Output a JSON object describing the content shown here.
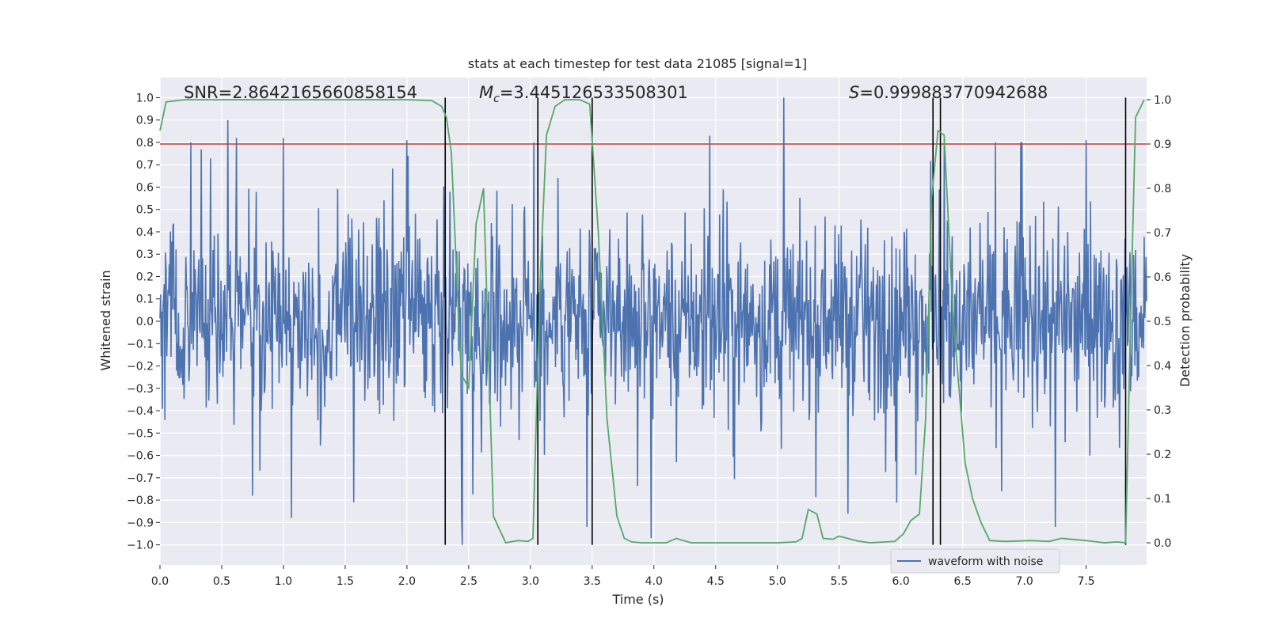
{
  "chart_data": {
    "type": "line",
    "title": "stats at each timestep for test data 21085 [signal=1]",
    "xlabel": "Time (s)",
    "ylabel_left": "Whitened strain",
    "ylabel_right": "Detection probability",
    "xlim": [
      0.0,
      7.99
    ],
    "ylim_left": [
      -1.09,
      1.09
    ],
    "ylim_right": [
      -0.05,
      1.05
    ],
    "x_ticks": [
      "0.0",
      "0.5",
      "1.0",
      "1.5",
      "2.0",
      "2.5",
      "3.0",
      "3.5",
      "4.0",
      "4.5",
      "5.0",
      "5.5",
      "6.0",
      "6.5",
      "7.0",
      "7.5"
    ],
    "y_ticks_left": [
      "1.0",
      "0.9",
      "0.8",
      "0.7",
      "0.6",
      "0.5",
      "0.4",
      "0.3",
      "0.2",
      "0.1",
      "0.0",
      "−0.1",
      "−0.2",
      "−0.3",
      "−0.4",
      "−0.5",
      "−0.6",
      "−0.7",
      "−0.8",
      "−0.9",
      "−1.0"
    ],
    "y_ticks_right": [
      "1.0",
      "0.9",
      "0.8",
      "0.7",
      "0.6",
      "0.5",
      "0.4",
      "0.3",
      "0.2",
      "0.1",
      "0.0"
    ],
    "grid": true,
    "legend": {
      "position": "bottom-right",
      "entries": [
        "waveform with noise"
      ]
    },
    "annotations": {
      "snr": "SNR=2.8642165660858154",
      "mc_symbol": "M",
      "mc_sub": "c",
      "mc_value": "=3.445126533508301",
      "s_symbol": "S",
      "s_value": "=0.999883770942688"
    },
    "threshold_line": {
      "y_right": 0.9,
      "color": "#c03d3e"
    },
    "vertical_lines_x": [
      2.31,
      3.06,
      3.5,
      6.26,
      6.32,
      7.82
    ],
    "waveform": {
      "name": "waveform with noise",
      "color": "#4c72b0",
      "n_samples": 1600,
      "base_amplitude": 0.19,
      "spikes": [
        {
          "x": 0.55,
          "y": 0.9
        },
        {
          "x": 0.62,
          "y": 0.82
        },
        {
          "x": 1.0,
          "y": 0.82
        },
        {
          "x": 2.0,
          "y": 0.81
        },
        {
          "x": 5.05,
          "y": 1.0
        },
        {
          "x": 4.45,
          "y": 0.83
        },
        {
          "x": 6.35,
          "y": 0.81
        },
        {
          "x": 7.5,
          "y": 0.81
        },
        {
          "x": 3.46,
          "y": -0.92
        },
        {
          "x": 2.45,
          "y": -1.0
        },
        {
          "x": 3.98,
          "y": -0.97
        },
        {
          "x": 7.25,
          "y": -0.92
        },
        {
          "x": 0.75,
          "y": -0.78
        },
        {
          "x": 5.57,
          "y": -0.86
        }
      ]
    },
    "detection_probability": {
      "name": "detection probability",
      "color": "#55a868",
      "x": [
        0.0,
        0.05,
        0.2,
        0.5,
        1.0,
        1.5,
        2.0,
        2.2,
        2.28,
        2.32,
        2.36,
        2.4,
        2.44,
        2.5,
        2.56,
        2.62,
        2.7,
        2.8,
        2.9,
        2.98,
        3.02,
        3.08,
        3.13,
        3.2,
        3.28,
        3.4,
        3.48,
        3.55,
        3.62,
        3.7,
        3.76,
        3.82,
        3.9,
        4.1,
        4.18,
        4.3,
        4.6,
        5.0,
        5.15,
        5.2,
        5.25,
        5.32,
        5.37,
        5.45,
        5.5,
        5.65,
        5.75,
        5.95,
        6.02,
        6.08,
        6.15,
        6.2,
        6.25,
        6.3,
        6.35,
        6.42,
        6.52,
        6.58,
        6.65,
        6.72,
        6.85,
        7.05,
        7.2,
        7.3,
        7.5,
        7.65,
        7.75,
        7.82,
        7.86,
        7.9,
        7.97
      ],
      "y": [
        0.93,
        0.995,
        1.0,
        1.0,
        1.0,
        1.0,
        1.0,
        0.998,
        0.985,
        0.96,
        0.88,
        0.62,
        0.38,
        0.35,
        0.72,
        0.8,
        0.06,
        0.0,
        0.005,
        0.003,
        0.01,
        0.6,
        0.92,
        0.985,
        1.0,
        1.0,
        0.99,
        0.7,
        0.28,
        0.06,
        0.01,
        0.002,
        0.0,
        0.0,
        0.01,
        0.0,
        0.0,
        0.0,
        0.002,
        0.01,
        0.075,
        0.065,
        0.01,
        0.008,
        0.015,
        0.004,
        0.0,
        0.003,
        0.02,
        0.05,
        0.065,
        0.28,
        0.78,
        0.93,
        0.92,
        0.52,
        0.18,
        0.1,
        0.045,
        0.005,
        0.003,
        0.005,
        0.003,
        0.01,
        0.005,
        0.0,
        0.002,
        0.0,
        0.5,
        0.96,
        1.0
      ]
    }
  }
}
